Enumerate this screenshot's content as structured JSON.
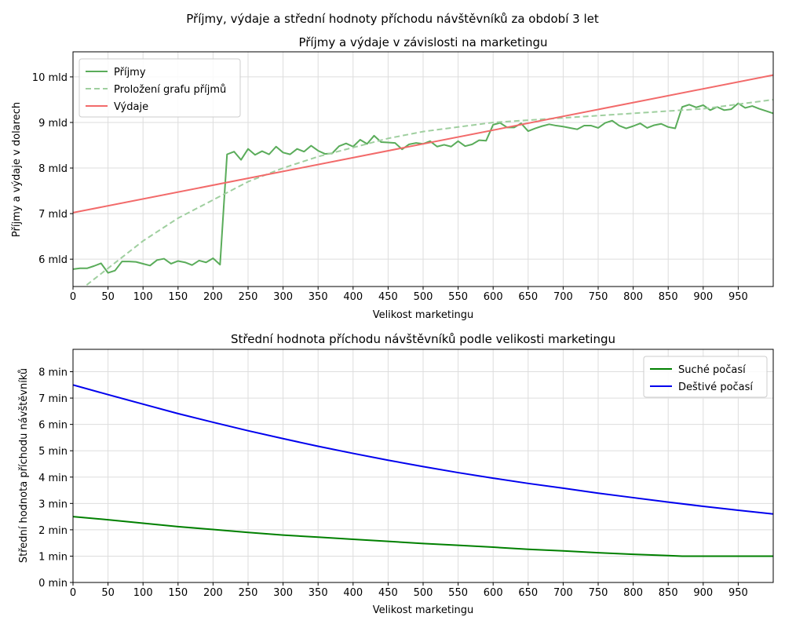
{
  "suptitle": "Příjmy, výdaje a střední hodnoty příchodu návštěvníků za období 3 let",
  "chart_data": [
    {
      "type": "line",
      "title": "Příjmy a výdaje v závislosti na marketingu",
      "xlabel": "Velikost marketingu",
      "ylabel": "Příjmy a výdaje v dolarech",
      "xlim": [
        0,
        1000
      ],
      "ylim": [
        5.4,
        10.55
      ],
      "xticks": [
        0,
        50,
        100,
        150,
        200,
        250,
        300,
        350,
        400,
        450,
        500,
        550,
        600,
        650,
        700,
        750,
        800,
        850,
        900,
        950
      ],
      "xtick_labels": [
        "0",
        "50",
        "100",
        "150",
        "200",
        "250",
        "300",
        "350",
        "400",
        "450",
        "500",
        "550",
        "600",
        "650",
        "700",
        "750",
        "800",
        "850",
        "900",
        "950"
      ],
      "yticks": [
        6,
        7,
        8,
        9,
        10
      ],
      "ytick_labels": [
        "6 mld",
        "7 mld",
        "8 mld",
        "9 mld",
        "10 mld"
      ],
      "grid": true,
      "legend_position": "top-left",
      "series": [
        {
          "name": "Příjmy",
          "style": "solid",
          "color": "#5aac5a",
          "x": [
            0,
            10,
            20,
            30,
            40,
            50,
            60,
            70,
            80,
            90,
            100,
            110,
            120,
            130,
            140,
            150,
            160,
            170,
            180,
            190,
            200,
            210,
            220,
            230,
            240,
            250,
            260,
            270,
            280,
            290,
            300,
            310,
            320,
            330,
            340,
            350,
            360,
            370,
            380,
            390,
            400,
            410,
            420,
            430,
            440,
            450,
            460,
            470,
            480,
            490,
            500,
            510,
            520,
            530,
            540,
            550,
            560,
            570,
            580,
            590,
            600,
            610,
            620,
            630,
            640,
            650,
            660,
            670,
            680,
            690,
            700,
            710,
            720,
            730,
            740,
            750,
            760,
            770,
            780,
            790,
            800,
            810,
            820,
            830,
            840,
            850,
            860,
            870,
            880,
            890,
            900,
            910,
            920,
            930,
            940,
            950,
            960,
            970,
            980,
            990,
            1000
          ],
          "y": [
            5.78,
            5.8,
            5.8,
            5.85,
            5.91,
            5.7,
            5.75,
            5.95,
            5.95,
            5.94,
            5.9,
            5.86,
            5.98,
            6.01,
            5.9,
            5.96,
            5.93,
            5.87,
            5.97,
            5.93,
            6.02,
            5.88,
            8.3,
            8.36,
            8.18,
            8.42,
            8.29,
            8.37,
            8.3,
            8.47,
            8.34,
            8.3,
            8.42,
            8.36,
            8.49,
            8.38,
            8.31,
            8.32,
            8.48,
            8.54,
            8.47,
            8.62,
            8.53,
            8.71,
            8.57,
            8.56,
            8.55,
            8.41,
            8.52,
            8.55,
            8.53,
            8.59,
            8.47,
            8.51,
            8.47,
            8.59,
            8.48,
            8.52,
            8.61,
            8.6,
            8.95,
            8.99,
            8.89,
            8.89,
            8.98,
            8.81,
            8.87,
            8.92,
            8.96,
            8.93,
            8.91,
            8.88,
            8.85,
            8.93,
            8.93,
            8.88,
            8.99,
            9.04,
            8.93,
            8.87,
            8.92,
            8.98,
            8.88,
            8.94,
            8.97,
            8.9,
            8.87,
            9.34,
            9.39,
            9.33,
            9.38,
            9.27,
            9.34,
            9.27,
            9.29,
            9.42,
            9.32,
            9.36,
            9.3,
            9.25,
            9.2
          ]
        },
        {
          "name": "Proložení grafu příjmů",
          "style": "dashed",
          "color": "#9fcf9f",
          "x": [
            0,
            10,
            20,
            30,
            40,
            50,
            60,
            70,
            80,
            90,
            100,
            110,
            120,
            130,
            140,
            150,
            160,
            170,
            180,
            190,
            200,
            210,
            220,
            230,
            240,
            250,
            260,
            270,
            280,
            290,
            300,
            310,
            320,
            330,
            340,
            350,
            360,
            370,
            380,
            390,
            400,
            410,
            420,
            430,
            440,
            450,
            460,
            470,
            480,
            490,
            500,
            510,
            520,
            530,
            540,
            550,
            560,
            570,
            580,
            590,
            600,
            610,
            620,
            630,
            640,
            650,
            660,
            670,
            680,
            690,
            700,
            710,
            720,
            730,
            740,
            750,
            760,
            770,
            780,
            790,
            800,
            810,
            820,
            830,
            840,
            850,
            860,
            870,
            880,
            890,
            900,
            910,
            920,
            930,
            940,
            950,
            960,
            970,
            980,
            990,
            1000
          ],
          "y": [
            5.2,
            5.32,
            5.44,
            5.56,
            5.68,
            5.8,
            5.92,
            6.04,
            6.16,
            6.28,
            6.4,
            6.5,
            6.6,
            6.7,
            6.8,
            6.9,
            6.98,
            7.06,
            7.14,
            7.22,
            7.3,
            7.38,
            7.46,
            7.54,
            7.62,
            7.7,
            7.76,
            7.82,
            7.88,
            7.94,
            8.0,
            8.05,
            8.1,
            8.15,
            8.2,
            8.25,
            8.29,
            8.33,
            8.37,
            8.41,
            8.45,
            8.49,
            8.53,
            8.57,
            8.61,
            8.65,
            8.68,
            8.71,
            8.74,
            8.77,
            8.8,
            8.82,
            8.84,
            8.86,
            8.88,
            8.9,
            8.92,
            8.94,
            8.96,
            8.98,
            9.0,
            9.01,
            9.02,
            9.03,
            9.04,
            9.05,
            9.06,
            9.07,
            9.08,
            9.09,
            9.1,
            9.11,
            9.12,
            9.13,
            9.14,
            9.15,
            9.16,
            9.17,
            9.18,
            9.19,
            9.2,
            9.21,
            9.22,
            9.23,
            9.24,
            9.25,
            9.26,
            9.27,
            9.28,
            9.29,
            9.3,
            9.32,
            9.34,
            9.36,
            9.38,
            9.4,
            9.42,
            9.44,
            9.46,
            9.48,
            9.5
          ]
        },
        {
          "name": "Výdaje",
          "style": "solid",
          "color": "#f26a6a",
          "x": [
            0,
            1000
          ],
          "y": [
            7.02,
            10.04
          ]
        }
      ]
    },
    {
      "type": "line",
      "title": "Střední hodnota příchodu návštěvníků podle velikosti marketingu",
      "xlabel": "Velikost marketingu",
      "ylabel": "Střední hodnota příchodu návštěvníků",
      "xlim": [
        0,
        1000
      ],
      "ylim": [
        0,
        8.85
      ],
      "xticks": [
        0,
        50,
        100,
        150,
        200,
        250,
        300,
        350,
        400,
        450,
        500,
        550,
        600,
        650,
        700,
        750,
        800,
        850,
        900,
        950
      ],
      "xtick_labels": [
        "0",
        "50",
        "100",
        "150",
        "200",
        "250",
        "300",
        "350",
        "400",
        "450",
        "500",
        "550",
        "600",
        "650",
        "700",
        "750",
        "800",
        "850",
        "900",
        "950"
      ],
      "yticks": [
        0,
        1,
        2,
        3,
        4,
        5,
        6,
        7,
        8
      ],
      "ytick_labels": [
        "0 min",
        "1 min",
        "2 min",
        "3 min",
        "4 min",
        "5 min",
        "6 min",
        "7 min",
        "8 min"
      ],
      "grid": true,
      "legend_position": "top-right",
      "series": [
        {
          "name": "Suché počasí",
          "style": "solid",
          "color": "#008000",
          "x": [
            0,
            50,
            100,
            150,
            200,
            250,
            300,
            350,
            400,
            450,
            500,
            550,
            600,
            650,
            700,
            750,
            800,
            850,
            870,
            900,
            950,
            1000
          ],
          "y": [
            2.5,
            2.38,
            2.25,
            2.12,
            2.01,
            1.9,
            1.8,
            1.72,
            1.64,
            1.56,
            1.48,
            1.41,
            1.34,
            1.26,
            1.2,
            1.13,
            1.07,
            1.02,
            1.0,
            1.0,
            1.0,
            1.0
          ]
        },
        {
          "name": "Deštivé počasí",
          "style": "solid",
          "color": "#0000ee",
          "x": [
            0,
            50,
            100,
            150,
            200,
            250,
            300,
            350,
            400,
            450,
            500,
            550,
            600,
            650,
            700,
            750,
            800,
            850,
            900,
            950,
            1000
          ],
          "y": [
            7.5,
            7.13,
            6.77,
            6.41,
            6.08,
            5.76,
            5.46,
            5.17,
            4.9,
            4.64,
            4.4,
            4.17,
            3.96,
            3.76,
            3.58,
            3.39,
            3.22,
            3.05,
            2.89,
            2.74,
            2.6
          ]
        }
      ]
    }
  ]
}
